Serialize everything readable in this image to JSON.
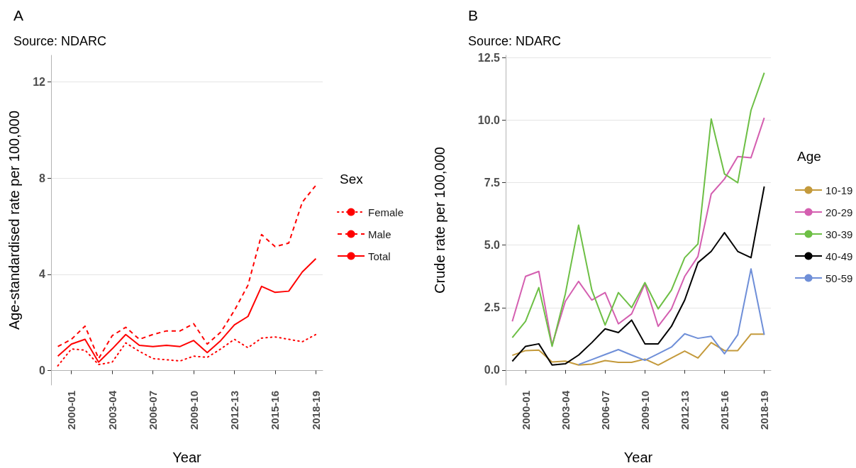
{
  "chart_data": [
    {
      "type": "line",
      "title": "A",
      "subtitle": "Source: NDARC",
      "xlabel": "Year",
      "ylabel": "Age-standardised rate per 100,000",
      "legend_title": "Sex",
      "categories": [
        null,
        "2000-01",
        null,
        null,
        "2003-04",
        null,
        null,
        "2006-07",
        null,
        null,
        "2009-10",
        null,
        null,
        "2012-13",
        null,
        null,
        "2015-16",
        null,
        null,
        "2018-19"
      ],
      "series": [
        {
          "name": "Female",
          "color": "#ff0000",
          "line_style": "dotted",
          "values": [
            0.2,
            0.9,
            0.85,
            0.25,
            0.35,
            1.15,
            0.8,
            0.5,
            0.45,
            0.4,
            0.6,
            0.55,
            0.9,
            1.3,
            0.95,
            1.35,
            1.4,
            1.3,
            1.2,
            1.5
          ]
        },
        {
          "name": "Male",
          "color": "#ff0000",
          "line_style": "dashed",
          "values": [
            1.0,
            1.3,
            1.85,
            0.5,
            1.45,
            1.8,
            1.3,
            1.5,
            1.65,
            1.65,
            1.95,
            1.1,
            1.6,
            2.5,
            3.55,
            5.65,
            5.15,
            5.3,
            7.0,
            7.7
          ]
        },
        {
          "name": "Total",
          "color": "#ff0000",
          "line_style": "solid",
          "values": [
            0.6,
            1.1,
            1.3,
            0.35,
            0.9,
            1.5,
            1.05,
            1.0,
            1.05,
            1.0,
            1.25,
            0.75,
            1.25,
            1.9,
            2.25,
            3.5,
            3.25,
            3.3,
            4.1,
            4.65
          ]
        }
      ],
      "ylim": [
        -0.6,
        13.1
      ],
      "yticks": [
        0,
        4,
        8,
        12
      ],
      "grid": "y",
      "legend": "right",
      "marker": "none"
    },
    {
      "type": "line",
      "title": "B",
      "subtitle": "Source: NDARC",
      "xlabel": "Year",
      "ylabel": "Crude rate per 100,000",
      "legend_title": "Age",
      "categories": [
        null,
        "2000-01",
        null,
        null,
        "2003-04",
        null,
        null,
        "2006-07",
        null,
        null,
        "2009-10",
        null,
        null,
        "2012-13",
        null,
        null,
        "2015-16",
        null,
        null,
        "2018-19"
      ],
      "series": [
        {
          "name": "10-19",
          "color": "#c49a3c",
          "values": [
            0.59,
            0.78,
            0.8,
            0.32,
            0.36,
            0.2,
            0.24,
            0.38,
            0.31,
            0.31,
            0.44,
            0.2,
            0.48,
            0.76,
            0.48,
            1.1,
            0.78,
            0.78,
            1.44,
            1.44
          ]
        },
        {
          "name": "20-29",
          "color": "#d45fb0",
          "values": [
            1.95,
            3.75,
            3.95,
            1.0,
            2.75,
            3.55,
            2.8,
            3.1,
            1.85,
            2.25,
            3.45,
            1.75,
            2.45,
            3.75,
            4.55,
            7.05,
            7.65,
            8.55,
            8.5,
            10.1
          ]
        },
        {
          "name": "30-39",
          "color": "#6dbf45",
          "values": [
            1.3,
            1.95,
            3.3,
            0.95,
            3.05,
            5.8,
            3.2,
            1.8,
            3.1,
            2.5,
            3.5,
            2.45,
            3.2,
            4.5,
            5.05,
            10.05,
            7.85,
            7.5,
            10.4,
            11.9
          ]
        },
        {
          "name": "40-49",
          "color": "#000000",
          "values": [
            0.35,
            0.95,
            1.05,
            0.2,
            0.25,
            0.6,
            1.1,
            1.65,
            1.5,
            2.0,
            1.05,
            1.05,
            1.75,
            2.8,
            4.3,
            4.75,
            5.5,
            4.75,
            4.5,
            7.35
          ]
        },
        {
          "name": "50-59",
          "color": "#6f8fd8",
          "values": [
            null,
            null,
            null,
            null,
            null,
            0.22,
            0.42,
            0.62,
            0.82,
            0.6,
            0.39,
            0.65,
            0.92,
            1.45,
            1.27,
            1.35,
            0.65,
            1.41,
            4.05,
            1.41
          ]
        }
      ],
      "ylim": [
        -0.6,
        12.6
      ],
      "yticks": [
        {
          "value": 0,
          "label": "0.0"
        },
        2.5,
        {
          "value": 5,
          "label": "5.0"
        },
        7.5,
        {
          "value": 10,
          "label": "10.0"
        },
        12.5
      ],
      "grid": "y",
      "legend": "right",
      "marker": "none",
      "line_style": "solid"
    }
  ]
}
